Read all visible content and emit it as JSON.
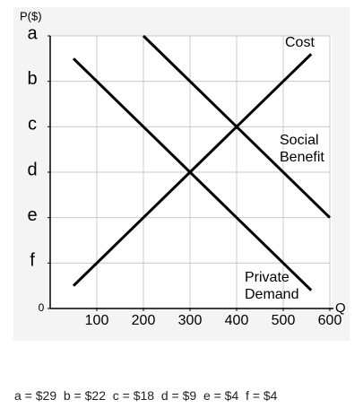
{
  "chart_data": {
    "type": "line",
    "y_axis_label": "P($)",
    "x_axis_label": "Q",
    "xlim": [
      0,
      600
    ],
    "xticks": [
      100,
      200,
      300,
      400,
      500,
      600
    ],
    "ylim": [
      0,
      6
    ],
    "yticks": [
      0,
      {
        "value": 1,
        "label": "f"
      },
      {
        "value": 2,
        "label": "e"
      },
      {
        "value": 3,
        "label": "d"
      },
      {
        "value": 4,
        "label": "c"
      },
      {
        "value": 5,
        "label": "b"
      },
      {
        "value": 6,
        "label": "a"
      }
    ],
    "grid": true,
    "series": [
      {
        "name": "Cost",
        "color": "#000000",
        "x": [
          50,
          560
        ],
        "values": [
          0.5,
          5.6
        ]
      },
      {
        "name": "Social Benefit",
        "color": "#000000",
        "x": [
          200,
          600
        ],
        "values": [
          6,
          2
        ]
      },
      {
        "name": "Private Demand",
        "color": "#000000",
        "x": [
          50,
          560
        ],
        "values": [
          5.5,
          0.4
        ]
      }
    ],
    "note": "a = $29  b = $22  c = $18  d = $9  e = $4  f = $4"
  }
}
